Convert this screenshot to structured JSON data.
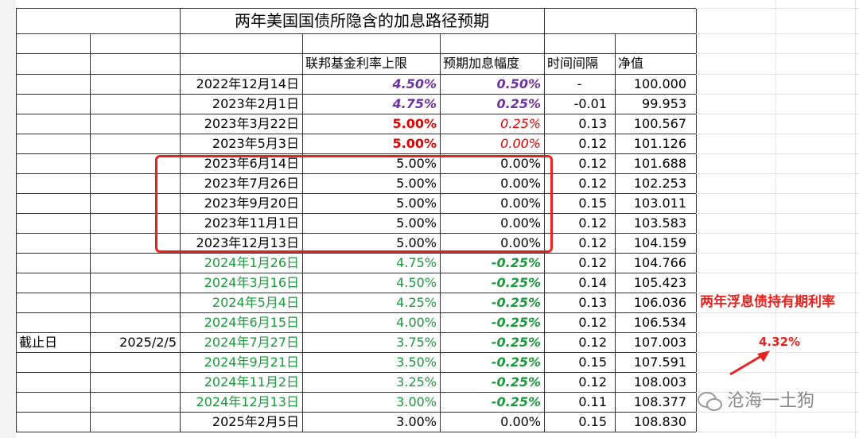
{
  "title": "两年美国国债所隐含的加息路径预期",
  "header": [
    "联邦基金利率上限",
    "预期加息幅度",
    "时间间隔",
    "净值"
  ],
  "rows": [
    [
      "2022年12月14日",
      "4.50%",
      "0.50%",
      "-",
      "100.000"
    ],
    [
      "2023年2月1日",
      "4.75%",
      "0.25%",
      "-0.01",
      "99.953"
    ],
    [
      "2023年3月22日",
      "5.00%",
      "0.25%",
      "0.13",
      "100.567"
    ],
    [
      "2023年5月3日",
      "5.00%",
      "0.00%",
      "0.12",
      "101.126"
    ],
    [
      "2023年6月14日",
      "5.00%",
      "0.00%",
      "0.12",
      "101.688"
    ],
    [
      "2023年7月26日",
      "5.00%",
      "0.00%",
      "0.12",
      "102.253"
    ],
    [
      "2023年9月20日",
      "5.00%",
      "0.00%",
      "0.15",
      "103.011"
    ],
    [
      "2023年11月1日",
      "5.00%",
      "0.00%",
      "0.12",
      "103.583"
    ],
    [
      "2023年12月13日",
      "5.00%",
      "0.00%",
      "0.12",
      "104.159"
    ],
    [
      "2024年1月26日",
      "4.75%",
      "-0.25%",
      "0.12",
      "104.766"
    ],
    [
      "2024年3月16日",
      "4.50%",
      "-0.25%",
      "0.14",
      "105.423"
    ],
    [
      "2024年5月4日",
      "4.25%",
      "-0.25%",
      "0.13",
      "106.036"
    ],
    [
      "2024年6月15日",
      "4.00%",
      "-0.25%",
      "0.12",
      "106.534"
    ],
    [
      "2024年7月27日",
      "3.75%",
      "-0.25%",
      "0.12",
      "107.003"
    ],
    [
      "2024年9月21日",
      "3.50%",
      "-0.25%",
      "0.15",
      "107.591"
    ],
    [
      "2024年11月2日",
      "3.25%",
      "-0.25%",
      "0.12",
      "108.003"
    ],
    [
      "2024年12月13日",
      "3.00%",
      "-0.25%",
      "0.11",
      "108.377"
    ],
    [
      "2025年2月5日",
      "3.00%",
      "0.00%",
      "0.15",
      "108.830"
    ]
  ],
  "cutoff": {
    "label": "截止日",
    "date": "2025/2/5"
  },
  "annotation": {
    "title": "两年浮息债持有期利率",
    "value": "4.32%"
  },
  "watermark": "沧海一土狗"
}
